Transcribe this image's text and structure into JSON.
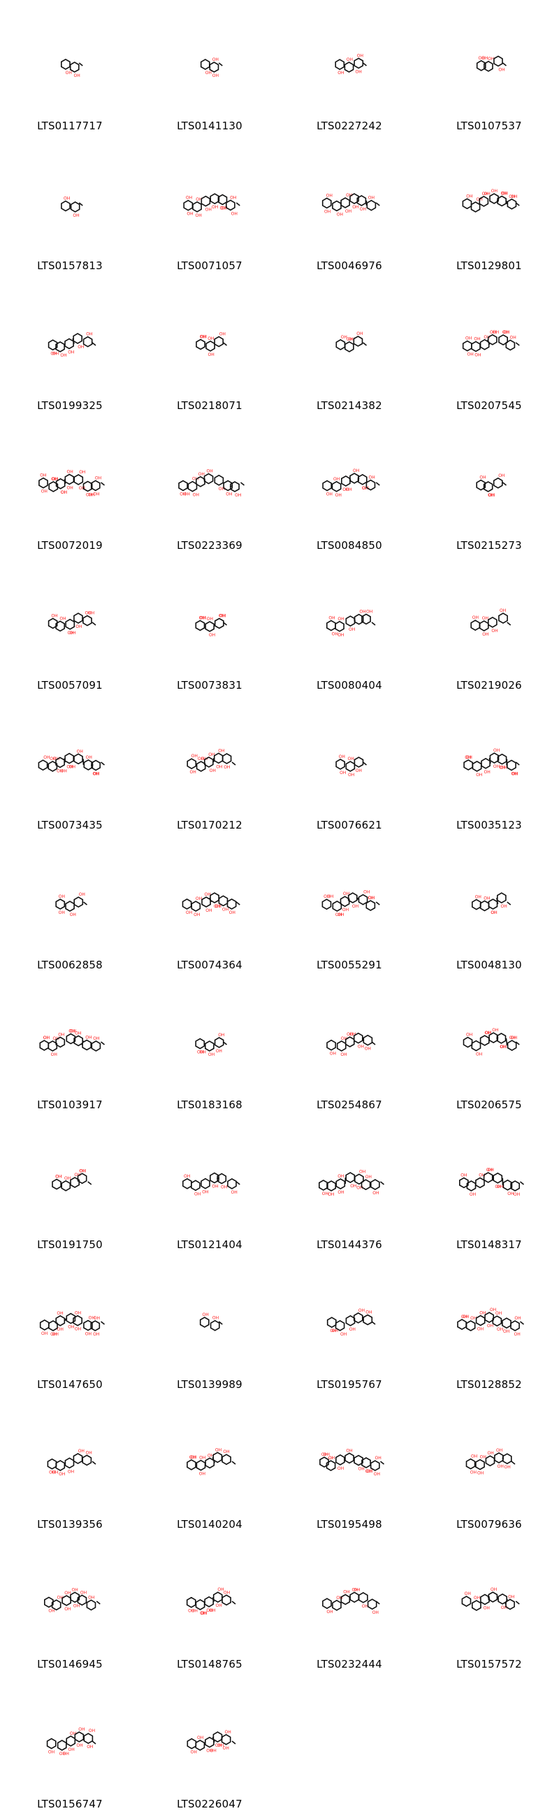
{
  "molecules": [
    {
      "id": "LTS0117717",
      "size": 2
    },
    {
      "id": "LTS0141130",
      "size": 2
    },
    {
      "id": "LTS0227242",
      "size": 3
    },
    {
      "id": "LTS0107537",
      "size": 3
    },
    {
      "id": "LTS0157813",
      "size": 2
    },
    {
      "id": "LTS0071057",
      "size": 6
    },
    {
      "id": "LTS0046976",
      "size": 6
    },
    {
      "id": "LTS0129801",
      "size": 6
    },
    {
      "id": "LTS0199325",
      "size": 5
    },
    {
      "id": "LTS0218071",
      "size": 3
    },
    {
      "id": "LTS0214382",
      "size": 3
    },
    {
      "id": "LTS0207545",
      "size": 6
    },
    {
      "id": "LTS0072019",
      "size": 7
    },
    {
      "id": "LTS0223369",
      "size": 7
    },
    {
      "id": "LTS0084850",
      "size": 6
    },
    {
      "id": "LTS0215273",
      "size": 3
    },
    {
      "id": "LTS0057091",
      "size": 5
    },
    {
      "id": "LTS0073831",
      "size": 3
    },
    {
      "id": "LTS0080404",
      "size": 5
    },
    {
      "id": "LTS0219026",
      "size": 4
    },
    {
      "id": "LTS0073435",
      "size": 7
    },
    {
      "id": "LTS0170212",
      "size": 5
    },
    {
      "id": "LTS0076621",
      "size": 3
    },
    {
      "id": "LTS0035123",
      "size": 6
    },
    {
      "id": "LTS0062858",
      "size": 3
    },
    {
      "id": "LTS0074364",
      "size": 6
    },
    {
      "id": "LTS0055291",
      "size": 6
    },
    {
      "id": "LTS0048130",
      "size": 4
    },
    {
      "id": "LTS0103917",
      "size": 7
    },
    {
      "id": "LTS0183168",
      "size": 3
    },
    {
      "id": "LTS0254867",
      "size": 5
    },
    {
      "id": "LTS0206575",
      "size": 6
    },
    {
      "id": "LTS0191750",
      "size": 4
    },
    {
      "id": "LTS0121404",
      "size": 6
    },
    {
      "id": "LTS0144376",
      "size": 7
    },
    {
      "id": "LTS0148317",
      "size": 7
    },
    {
      "id": "LTS0147650",
      "size": 7
    },
    {
      "id": "LTS0139989",
      "size": 2
    },
    {
      "id": "LTS0195767",
      "size": 5
    },
    {
      "id": "LTS0128852",
      "size": 7
    },
    {
      "id": "LTS0139356",
      "size": 5
    },
    {
      "id": "LTS0140204",
      "size": 5
    },
    {
      "id": "LTS0195498",
      "size": 7
    },
    {
      "id": "LTS0079636",
      "size": 5
    },
    {
      "id": "LTS0146945",
      "size": 6
    },
    {
      "id": "LTS0148765",
      "size": 5
    },
    {
      "id": "LTS0232444",
      "size": 6
    },
    {
      "id": "LTS0157572",
      "size": 6
    },
    {
      "id": "LTS0156747",
      "size": 5
    },
    {
      "id": "LTS0226047",
      "size": 5
    }
  ],
  "colors": {
    "bond": "#111111",
    "heteroatom": "#ff2020",
    "label": "#000000"
  },
  "heteroatom_text": "OH"
}
